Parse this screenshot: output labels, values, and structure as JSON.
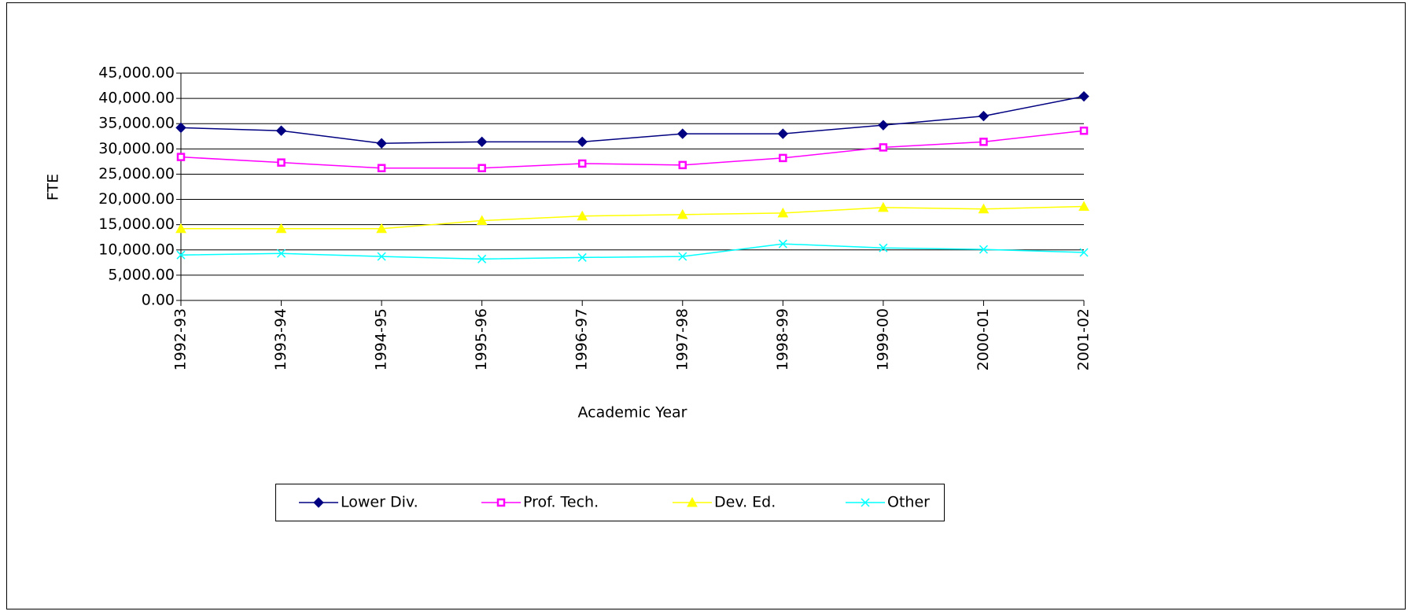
{
  "chart_data": {
    "type": "line",
    "y_label": "FTE",
    "x_label": "Academic Year",
    "categories": [
      "1992-93",
      "1993-94",
      "1994-95",
      "1995-96",
      "1996-97",
      "1997-98",
      "1998-99",
      "1999-00",
      "2000-01",
      "2001-02"
    ],
    "series": [
      {
        "name": "Lower Div.",
        "color": "#000080",
        "marker": "diamond",
        "values": [
          34200,
          33600,
          31100,
          31400,
          31400,
          33000,
          33000,
          34700,
          36500,
          40400
        ]
      },
      {
        "name": "Prof. Tech.",
        "color": "#FF00FF",
        "marker": "square",
        "values": [
          28400,
          27300,
          26200,
          26200,
          27100,
          26800,
          28200,
          30300,
          31400,
          33600
        ]
      },
      {
        "name": "Dev. Ed.",
        "color": "#FFFF00",
        "marker": "triangle",
        "values": [
          14200,
          14200,
          14200,
          15800,
          16700,
          17000,
          17300,
          18400,
          18100,
          18600
        ]
      },
      {
        "name": "Other",
        "color": "#00FFFF",
        "marker": "x",
        "values": [
          9000,
          9300,
          8700,
          8200,
          8500,
          8700,
          11200,
          10400,
          10100,
          9500
        ]
      }
    ],
    "ylim": [
      0,
      45000
    ],
    "yticks": [
      {
        "value": 0,
        "label": "0.00"
      },
      {
        "value": 5000,
        "label": "5,000.00"
      },
      {
        "value": 10000,
        "label": "10,000.00"
      },
      {
        "value": 15000,
        "label": "15,000.00"
      },
      {
        "value": 20000,
        "label": "20,000.00"
      },
      {
        "value": 25000,
        "label": "25,000.00"
      },
      {
        "value": 30000,
        "label": "30,000.00"
      },
      {
        "value": 35000,
        "label": "35,000.00"
      },
      {
        "value": 40000,
        "label": "40,000.00"
      },
      {
        "value": 45000,
        "label": "45,000.00"
      }
    ],
    "grid": true,
    "legend": "bottom"
  }
}
